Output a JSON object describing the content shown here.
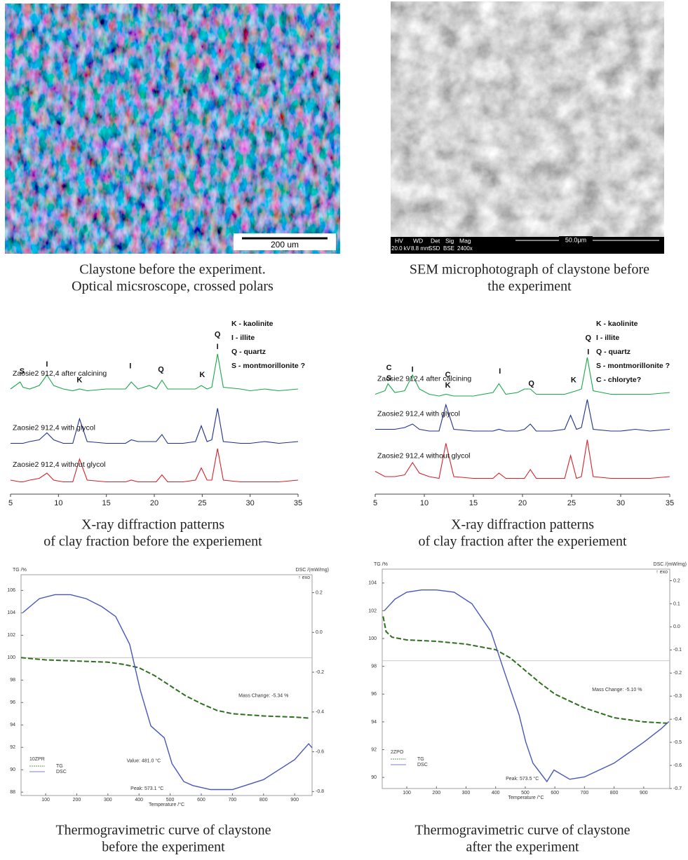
{
  "photos": [
    {
      "caption": [
        "Claystone before the experiment.",
        "Optical micsroscope, crossed polars"
      ],
      "scale_bar": "200 um"
    },
    {
      "caption": [
        "SEM microphotograph of claystone  before",
        "the experiment"
      ],
      "scale_bar": "50.0μm",
      "info": {
        "headers": [
          "HV",
          "WD",
          "Det",
          "Sig",
          "Mag"
        ],
        "values": [
          "20.0 kV",
          "8.8 mm",
          "SSD",
          "BSE",
          "2400x"
        ]
      }
    }
  ],
  "chart_data": [
    {
      "type": "line",
      "caption": [
        "X-ray diffraction patterns",
        "of clay fraction before the experiement"
      ],
      "x": [
        5,
        6,
        6.3,
        7,
        8,
        8.8,
        9.5,
        10.5,
        11.5,
        12.2,
        13,
        15,
        17,
        17.6,
        18.3,
        19.5,
        20.2,
        20.8,
        21.4,
        23,
        24.3,
        24.9,
        25.5,
        26,
        26.6,
        27.2,
        29,
        30,
        31.5,
        33,
        35
      ],
      "xlim": [
        5,
        35
      ],
      "xticks": [
        5,
        10,
        15,
        20,
        25,
        30,
        35
      ],
      "ylim": [
        0,
        100
      ],
      "series": [
        {
          "name": "Zaosie2 912,4 after calcining",
          "color": "#1aa84a",
          "values": [
            58,
            62,
            59,
            58,
            60,
            66,
            60,
            58,
            57,
            58,
            57,
            58,
            58,
            62,
            58,
            60,
            58,
            63,
            58,
            58,
            58,
            60,
            58,
            59,
            78,
            59,
            58,
            57,
            58,
            57,
            58
          ]
        },
        {
          "name": "Zaosie2 912,4 with glycol",
          "color": "#1f2f8f",
          "values": [
            27,
            27,
            27,
            28,
            29,
            33,
            29,
            27,
            27,
            41,
            28,
            27,
            27,
            29,
            28,
            28,
            28,
            32,
            27,
            27,
            28,
            37,
            28,
            29,
            47,
            28,
            27,
            27,
            28,
            27,
            28
          ]
        },
        {
          "name": "Zaosie2 912,4 without glycol",
          "color": "#d8202a",
          "values": [
            6,
            5,
            5,
            6,
            7,
            10,
            6,
            5,
            5,
            18,
            6,
            5,
            5,
            6,
            5,
            5,
            5,
            9,
            5,
            5,
            6,
            13,
            6,
            6,
            24,
            6,
            5,
            5,
            5,
            5,
            6
          ]
        }
      ],
      "key": [
        "K - kaolinite",
        "I - illite",
        "Q - quartz",
        "S - montmorillonite ?"
      ],
      "peak_labels": [
        {
          "text": "S",
          "x": 6.2,
          "y": 68
        },
        {
          "text": "I",
          "x": 8.8,
          "y": 72
        },
        {
          "text": "K",
          "x": 12.2,
          "y": 63
        },
        {
          "text": "I",
          "x": 17.5,
          "y": 71
        },
        {
          "text": "Q",
          "x": 20.7,
          "y": 69
        },
        {
          "text": "K",
          "x": 25,
          "y": 66
        },
        {
          "text": "Q",
          "x": 26.6,
          "y": 89
        },
        {
          "text": "I",
          "x": 26.6,
          "y": 82
        }
      ]
    },
    {
      "type": "line",
      "caption": [
        "X-ray diffraction patterns",
        "of clay fraction after the experiement"
      ],
      "x": [
        5,
        6,
        6.3,
        7,
        8,
        8.8,
        9.5,
        10.5,
        11.5,
        12.2,
        13,
        15,
        17,
        17.6,
        18.3,
        19.5,
        20.2,
        20.8,
        21.4,
        23,
        24.3,
        24.9,
        25.5,
        26,
        26.6,
        27.2,
        29,
        30,
        31.5,
        33,
        35
      ],
      "xlim": [
        5,
        35
      ],
      "xticks": [
        5,
        10,
        15,
        20,
        25,
        30,
        35
      ],
      "ylim": [
        0,
        100
      ],
      "series": [
        {
          "name": "Zaosie2 912,4 after calcining",
          "color": "#1aa84a",
          "values": [
            55,
            57,
            61,
            56,
            57,
            66,
            58,
            55,
            54,
            55,
            54,
            54,
            56,
            61,
            55,
            56,
            58,
            58,
            55,
            55,
            55,
            56,
            57,
            58,
            76,
            57,
            55,
            55,
            55,
            55,
            56
          ]
        },
        {
          "name": "Zaosie2 912,4 with glycol",
          "color": "#1f2f8f",
          "values": [
            35,
            35,
            35,
            35,
            36,
            38,
            35,
            34,
            34,
            49,
            35,
            34,
            34,
            35,
            34,
            34,
            35,
            38,
            34,
            34,
            35,
            43,
            35,
            36,
            52,
            35,
            34,
            34,
            35,
            34,
            35
          ]
        },
        {
          "name": "Zaosie2 912,4 without glycol",
          "color": "#d8202a",
          "values": [
            11,
            8,
            8,
            8,
            9,
            16,
            10,
            8,
            7,
            27,
            8,
            7,
            7,
            10,
            7,
            7,
            7,
            12,
            7,
            7,
            7,
            20,
            7,
            8,
            29,
            8,
            7,
            7,
            7,
            7,
            8
          ]
        }
      ],
      "key": [
        "K - kaolinite",
        "I - illite",
        "Q - quartz",
        "S - montmorillonite ?",
        "C - chloryte?"
      ],
      "peak_labels": [
        {
          "text": "C",
          "x": 6.4,
          "y": 70
        },
        {
          "text": "S",
          "x": 6.4,
          "y": 64
        },
        {
          "text": "I",
          "x": 8.8,
          "y": 69
        },
        {
          "text": "C",
          "x": 12.4,
          "y": 66
        },
        {
          "text": "K",
          "x": 12.4,
          "y": 60
        },
        {
          "text": "I",
          "x": 17.7,
          "y": 68
        },
        {
          "text": "Q",
          "x": 20.9,
          "y": 61
        },
        {
          "text": "K",
          "x": 25.2,
          "y": 63
        },
        {
          "text": "Q",
          "x": 26.7,
          "y": 87
        },
        {
          "text": "I",
          "x": 26.7,
          "y": 79
        }
      ]
    },
    {
      "type": "thermogram",
      "caption": [
        "Thermogravimetric curve of claystone",
        "before the experiment"
      ],
      "xlim": [
        21,
        956
      ],
      "xticks": [
        100,
        200,
        300,
        400,
        500,
        600,
        700,
        800,
        900
      ],
      "xlabel": "Temperature /°C",
      "ylabel": "TG /%",
      "y2label": "DSC /(mW/mg)",
      "exo": "↑ exo",
      "ylim": [
        87.7,
        107.4
      ],
      "yticks": [
        88,
        90,
        92,
        94,
        96,
        98,
        100,
        102,
        104,
        106
      ],
      "y2lim": [
        -0.82,
        0.29
      ],
      "y2ticks": [
        -0.8,
        -0.6,
        -0.4,
        -0.2,
        {
          "value": 0,
          "label": "0.0"
        },
        0.2
      ],
      "hline": 100,
      "legend_title": "10ZPR",
      "series": [
        {
          "name": "TG",
          "color": "#2e6e1f",
          "dash": true,
          "x": [
            21,
            100,
            200,
            300,
            350,
            400,
            450,
            500,
            550,
            600,
            650,
            700,
            800,
            900,
            950
          ],
          "values": [
            100,
            99.8,
            99.7,
            99.6,
            99.4,
            99.1,
            98.4,
            97.5,
            96.6,
            95.9,
            95.3,
            95.0,
            94.8,
            94.7,
            94.6
          ]
        },
        {
          "name": "DSC",
          "color": "#4a56b8",
          "dash": false,
          "axis": "y2",
          "x": [
            27,
            80,
            130,
            180,
            230,
            280,
            325,
            370,
            404,
            438,
            481,
            506,
            544,
            573,
            630,
            700,
            800,
            900,
            945,
            956
          ],
          "values": [
            0.1,
            0.17,
            0.19,
            0.19,
            0.17,
            0.13,
            0.08,
            -0.06,
            -0.29,
            -0.47,
            -0.53,
            -0.66,
            -0.75,
            -0.77,
            -0.79,
            -0.79,
            -0.74,
            -0.64,
            -0.56,
            -0.58
          ]
        }
      ],
      "annotations": [
        {
          "text": "Mass Change: -5.34 %",
          "x": 800,
          "y": 96.6,
          "color": "#2e6e1f"
        },
        {
          "text": "Value: 481.0 °C",
          "x": 415,
          "y": 90.8,
          "color": "#4a56b8"
        },
        {
          "text": "Peak: 573.1 °C",
          "x": 426,
          "y": 88.3,
          "color": "#4a56b8"
        }
      ]
    },
    {
      "type": "thermogram",
      "caption": [
        "Thermogravimetric curve of claystone",
        "after the experiment"
      ],
      "xlim": [
        17,
        988
      ],
      "xticks": [
        100,
        200,
        300,
        400,
        500,
        600,
        700,
        800,
        900
      ],
      "xlabel": "Temperature /°C",
      "ylabel": "TG /%",
      "y2label": "DSC /(mW/mg)",
      "exo": "↑ exo",
      "ylim": [
        89.2,
        105.0
      ],
      "yticks": [
        90,
        92,
        94,
        96,
        98,
        100,
        102,
        104
      ],
      "y2lim": [
        -0.7,
        0.25
      ],
      "y2ticks": [
        -0.7,
        -0.6,
        -0.5,
        -0.4,
        -0.3,
        -0.2,
        -0.1,
        {
          "value": 0,
          "label": "0.0"
        },
        0.1,
        0.2
      ],
      "hline": 98.4,
      "legend_title": "2ZPO",
      "series": [
        {
          "name": "TG",
          "color": "#2e6e1f",
          "dash": true,
          "x": [
            20,
            30,
            50,
            100,
            200,
            300,
            400,
            450,
            500,
            550,
            600,
            700,
            800,
            900,
            980
          ],
          "values": [
            101.6,
            100.5,
            100.1,
            99.9,
            99.8,
            99.6,
            99.2,
            98.6,
            97.7,
            96.8,
            96.0,
            95.0,
            94.3,
            94.0,
            93.9
          ]
        },
        {
          "name": "DSC",
          "color": "#4a56b8",
          "dash": false,
          "axis": "y2",
          "x": [
            24,
            60,
            100,
            150,
            200,
            260,
            320,
            384,
            431,
            479,
            502,
            526,
            573,
            597,
            650,
            700,
            800,
            900,
            960,
            985
          ],
          "values": [
            0.07,
            0.12,
            0.15,
            0.16,
            0.16,
            0.15,
            0.1,
            -0.02,
            -0.2,
            -0.38,
            -0.5,
            -0.59,
            -0.67,
            -0.62,
            -0.66,
            -0.65,
            -0.59,
            -0.5,
            -0.44,
            -0.41
          ]
        }
      ],
      "annotations": [
        {
          "text": "Mass Change: -5.10 %",
          "x": 810,
          "y": 96.3,
          "color": "#2e6e1f"
        },
        {
          "text": "Peak: 573.5 °C",
          "x": 490,
          "y": 89.9,
          "color": "#4a56b8"
        }
      ]
    }
  ]
}
